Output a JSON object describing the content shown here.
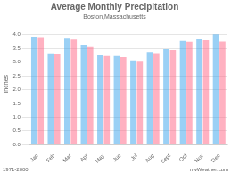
{
  "chart_data": {
    "type": "bar",
    "title": "Average Monthly Precipitation",
    "subtitle": "Boston,Massachusetts",
    "y_label": "Inches",
    "categories": [
      "Jan",
      "Feb",
      "Mar",
      "Apr",
      "May",
      "Jun",
      "Jul",
      "Aug",
      "Sept",
      "Oct",
      "Nov",
      "Dec"
    ],
    "series": [
      {
        "values": [
          3.92,
          3.32,
          3.85,
          3.6,
          3.25,
          3.22,
          3.06,
          3.37,
          3.47,
          3.77,
          3.83,
          4.02
        ]
      },
      {
        "values": [
          3.88,
          3.28,
          3.82,
          3.55,
          3.22,
          3.18,
          3.04,
          3.33,
          3.44,
          3.74,
          3.8,
          3.75
        ]
      }
    ],
    "ylim": [
      0,
      4.4
    ],
    "yticks": [
      {
        "value": 0,
        "label": "0.0"
      },
      0.5,
      {
        "value": 1,
        "label": "1.0"
      },
      1.5,
      {
        "value": 2,
        "label": "2.0"
      },
      2.5,
      {
        "value": 3,
        "label": "3.0"
      },
      3.5,
      {
        "value": 4,
        "label": "4.0"
      }
    ],
    "grid": true,
    "annotations": [
      "1971-2000",
      "nwWeather.com"
    ]
  }
}
